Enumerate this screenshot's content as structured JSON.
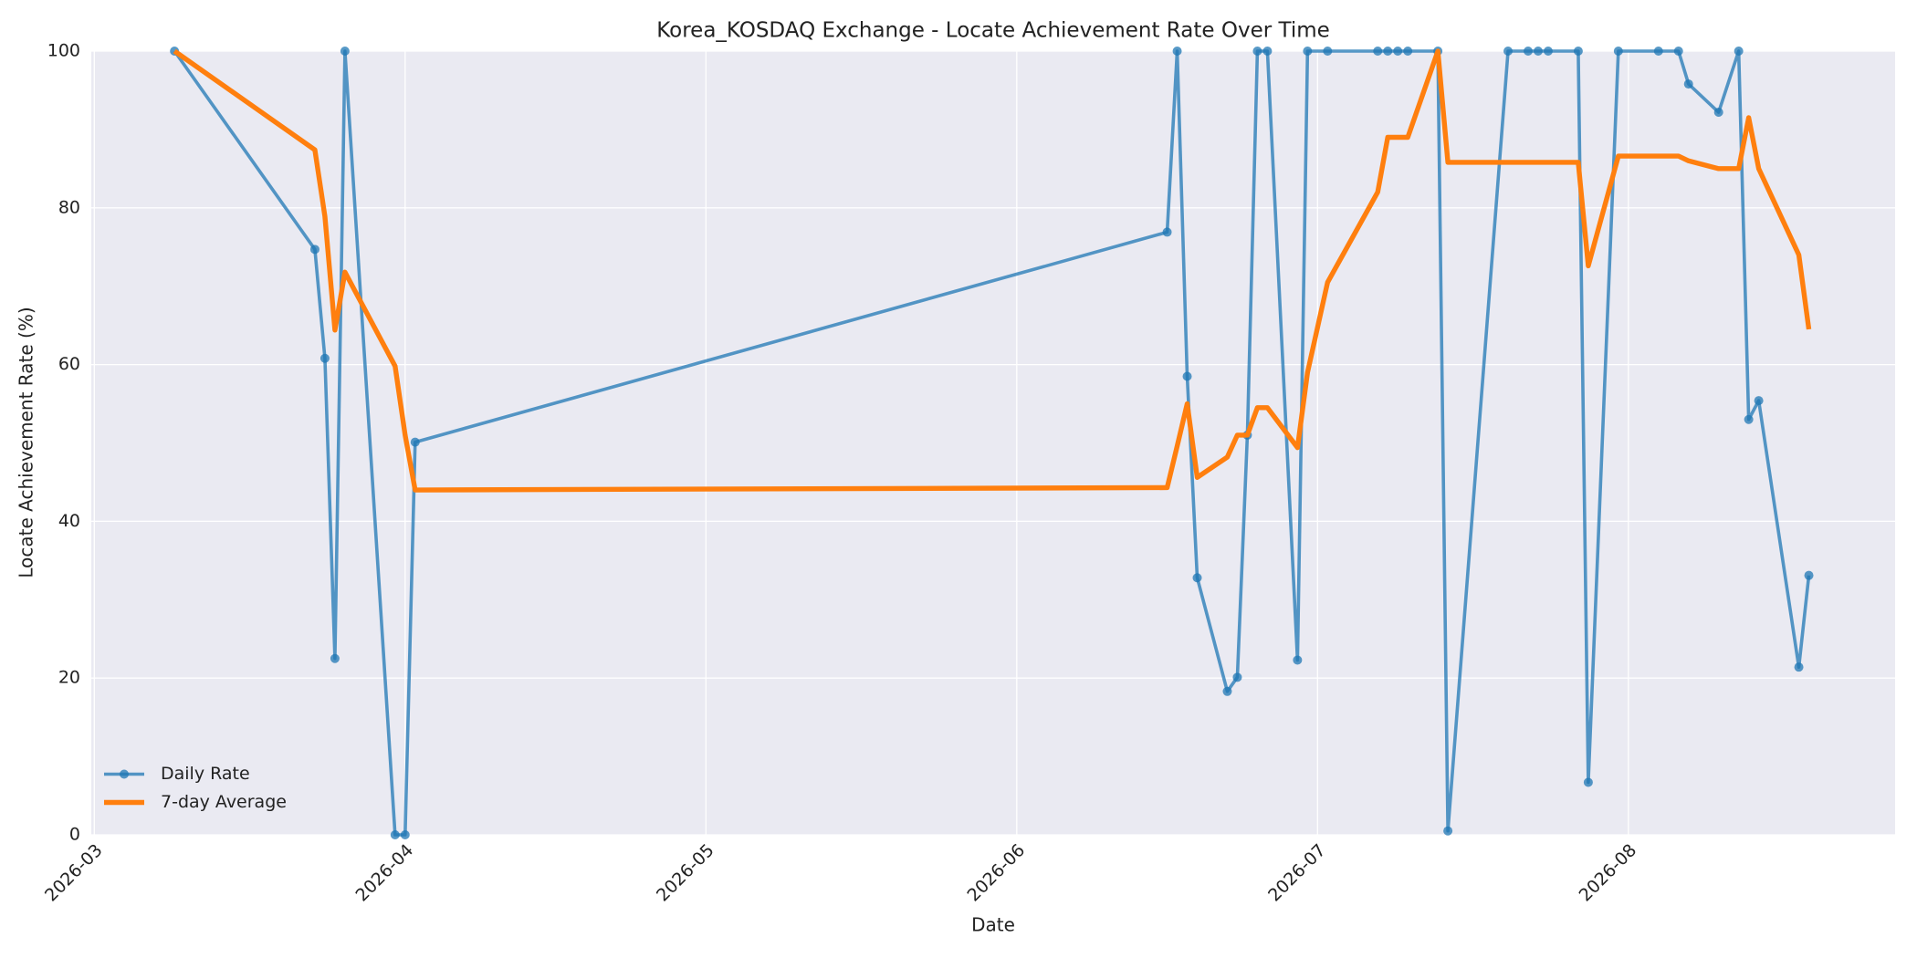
{
  "chart_data": {
    "type": "line",
    "title": "Korea_KOSDAQ Exchange - Locate Achievement Rate Over Time",
    "x_label": "Date",
    "y_label": "Locate Achievement Rate (%)",
    "x": [
      8,
      22,
      23,
      24,
      25,
      30,
      31,
      32,
      107,
      108,
      109,
      110,
      113,
      114,
      115,
      116,
      117,
      120,
      121,
      123,
      128,
      129,
      130,
      131,
      134,
      135,
      141,
      143,
      144,
      145,
      148,
      149,
      152,
      156,
      158,
      159,
      162,
      164,
      165,
      166,
      170,
      171
    ],
    "series": [
      {
        "name": "Daily Rate",
        "color": "#1f77b4",
        "marker": true,
        "values": [
          100,
          74.7,
          60.8,
          22.5,
          100,
          0,
          0,
          50.1,
          76.9,
          100,
          58.5,
          32.8,
          18.3,
          20.1,
          51.0,
          100,
          100,
          22.3,
          100,
          100,
          100,
          100,
          100,
          100,
          100,
          0.5,
          100,
          100,
          100,
          100,
          100,
          6.7,
          100,
          100,
          100,
          95.8,
          92.2,
          100,
          53.0,
          55.4,
          21.4,
          33.1
        ]
      },
      {
        "name": "7-day Average",
        "color": "#ff7f0e",
        "marker": false,
        "values": [
          100,
          87.4,
          78.9,
          64.4,
          71.8,
          59.8,
          51.0,
          44.0,
          44.3,
          49.6,
          55.0,
          45.6,
          48.2,
          51.0,
          51.0,
          54.5,
          54.5,
          49.4,
          59.0,
          70.5,
          82.0,
          89.0,
          89.0,
          89.0,
          100,
          85.8,
          85.8,
          85.8,
          85.8,
          85.8,
          85.8,
          72.6,
          86.6,
          86.6,
          86.6,
          86.0,
          85.0,
          85.0,
          91.5,
          85.0,
          74.0,
          64.5
        ]
      }
    ],
    "xlim": [
      -0.3,
      179.6
    ],
    "xticks": [
      {
        "value": 0,
        "label": "2026-03"
      },
      {
        "value": 31,
        "label": "2026-04"
      },
      {
        "value": 61,
        "label": "2026-05"
      },
      {
        "value": 92,
        "label": "2026-06"
      },
      {
        "value": 122,
        "label": "2026-07"
      },
      {
        "value": 153,
        "label": "2026-08"
      }
    ],
    "ylim": [
      0,
      100
    ],
    "yticks": [
      0,
      20,
      40,
      60,
      80,
      100
    ],
    "grid": true,
    "legend": "lower left"
  }
}
